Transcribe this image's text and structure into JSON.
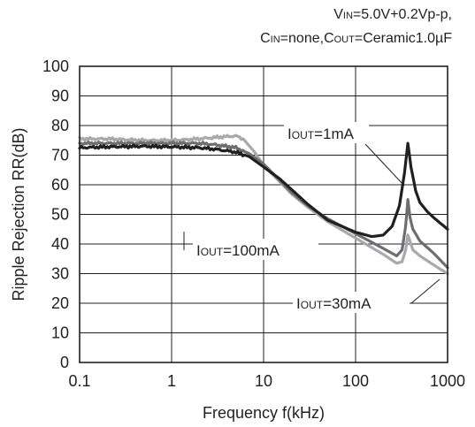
{
  "chart_data": {
    "type": "line",
    "conditions": [
      {
        "main": "V",
        "sub": "IN",
        "rest": "=5.0V+0.2Vp-p,"
      },
      {
        "parts": [
          {
            "main": "C",
            "sub": "IN",
            "rest": "=none,"
          },
          {
            "main": "C",
            "sub": "OUT",
            "rest": "=Ceramic1.0µF"
          }
        ]
      }
    ],
    "xlabel": "Frequency f(kHz)",
    "ylabel": "Ripple Rejection RR(dB)",
    "xscale": "log",
    "xlim": [
      0.1,
      1000
    ],
    "ylim": [
      0,
      100
    ],
    "grid": true,
    "x_ticks": [
      "0.1",
      "1",
      "10",
      "100",
      "1000"
    ],
    "y_ticks": [
      "0",
      "10",
      "20",
      "30",
      "40",
      "50",
      "60",
      "70",
      "80",
      "90",
      "100"
    ],
    "series": [
      {
        "name_main": "I",
        "name_sub": "OUT",
        "name_rest": "=1mA",
        "color": "#231f20",
        "points": [
          [
            0.1,
            72.5
          ],
          [
            0.2,
            72.8
          ],
          [
            0.5,
            73
          ],
          [
            1,
            72.8
          ],
          [
            2,
            72.5
          ],
          [
            3,
            72
          ],
          [
            5,
            71
          ],
          [
            7,
            69.5
          ],
          [
            10,
            66
          ],
          [
            15,
            62
          ],
          [
            20,
            58.5
          ],
          [
            30,
            53.5
          ],
          [
            50,
            48
          ],
          [
            100,
            44
          ],
          [
            150,
            42.5
          ],
          [
            200,
            43
          ],
          [
            250,
            46
          ],
          [
            300,
            53
          ],
          [
            340,
            64
          ],
          [
            370,
            74
          ],
          [
            400,
            66
          ],
          [
            450,
            58
          ],
          [
            500,
            54
          ],
          [
            600,
            51
          ],
          [
            700,
            49
          ],
          [
            1000,
            45
          ]
        ]
      },
      {
        "name_main": "I",
        "name_sub": "OUT",
        "name_rest": "=100mA",
        "color": "#a7a9ac",
        "points": [
          [
            0.1,
            75.5
          ],
          [
            0.2,
            75.5
          ],
          [
            0.5,
            75
          ],
          [
            1,
            75
          ],
          [
            2,
            75.5
          ],
          [
            3,
            76
          ],
          [
            5,
            76.5
          ],
          [
            6,
            75.5
          ],
          [
            8,
            71
          ],
          [
            10,
            66.5
          ],
          [
            15,
            61
          ],
          [
            20,
            57
          ],
          [
            30,
            52.5
          ],
          [
            50,
            47.5
          ],
          [
            100,
            42
          ],
          [
            200,
            36.5
          ],
          [
            280,
            33.5
          ],
          [
            320,
            34
          ],
          [
            350,
            38
          ],
          [
            370,
            43
          ],
          [
            390,
            41
          ],
          [
            420,
            38
          ],
          [
            500,
            36
          ],
          [
            700,
            33
          ],
          [
            1000,
            30
          ]
        ]
      },
      {
        "name_main": "I",
        "name_sub": "OUT",
        "name_rest": "=30mA",
        "color": "#6d6e71",
        "points": [
          [
            0.1,
            74
          ],
          [
            0.2,
            74
          ],
          [
            0.5,
            74
          ],
          [
            1,
            74
          ],
          [
            2,
            74
          ],
          [
            3,
            73.5
          ],
          [
            5,
            72.5
          ],
          [
            7,
            70.5
          ],
          [
            10,
            67
          ],
          [
            15,
            61.5
          ],
          [
            20,
            57.5
          ],
          [
            30,
            53
          ],
          [
            50,
            48.5
          ],
          [
            100,
            43.5
          ],
          [
            200,
            38.5
          ],
          [
            280,
            36
          ],
          [
            320,
            38
          ],
          [
            350,
            46
          ],
          [
            370,
            55
          ],
          [
            390,
            49
          ],
          [
            420,
            45
          ],
          [
            500,
            41
          ],
          [
            700,
            37
          ],
          [
            1000,
            32
          ]
        ]
      }
    ]
  }
}
